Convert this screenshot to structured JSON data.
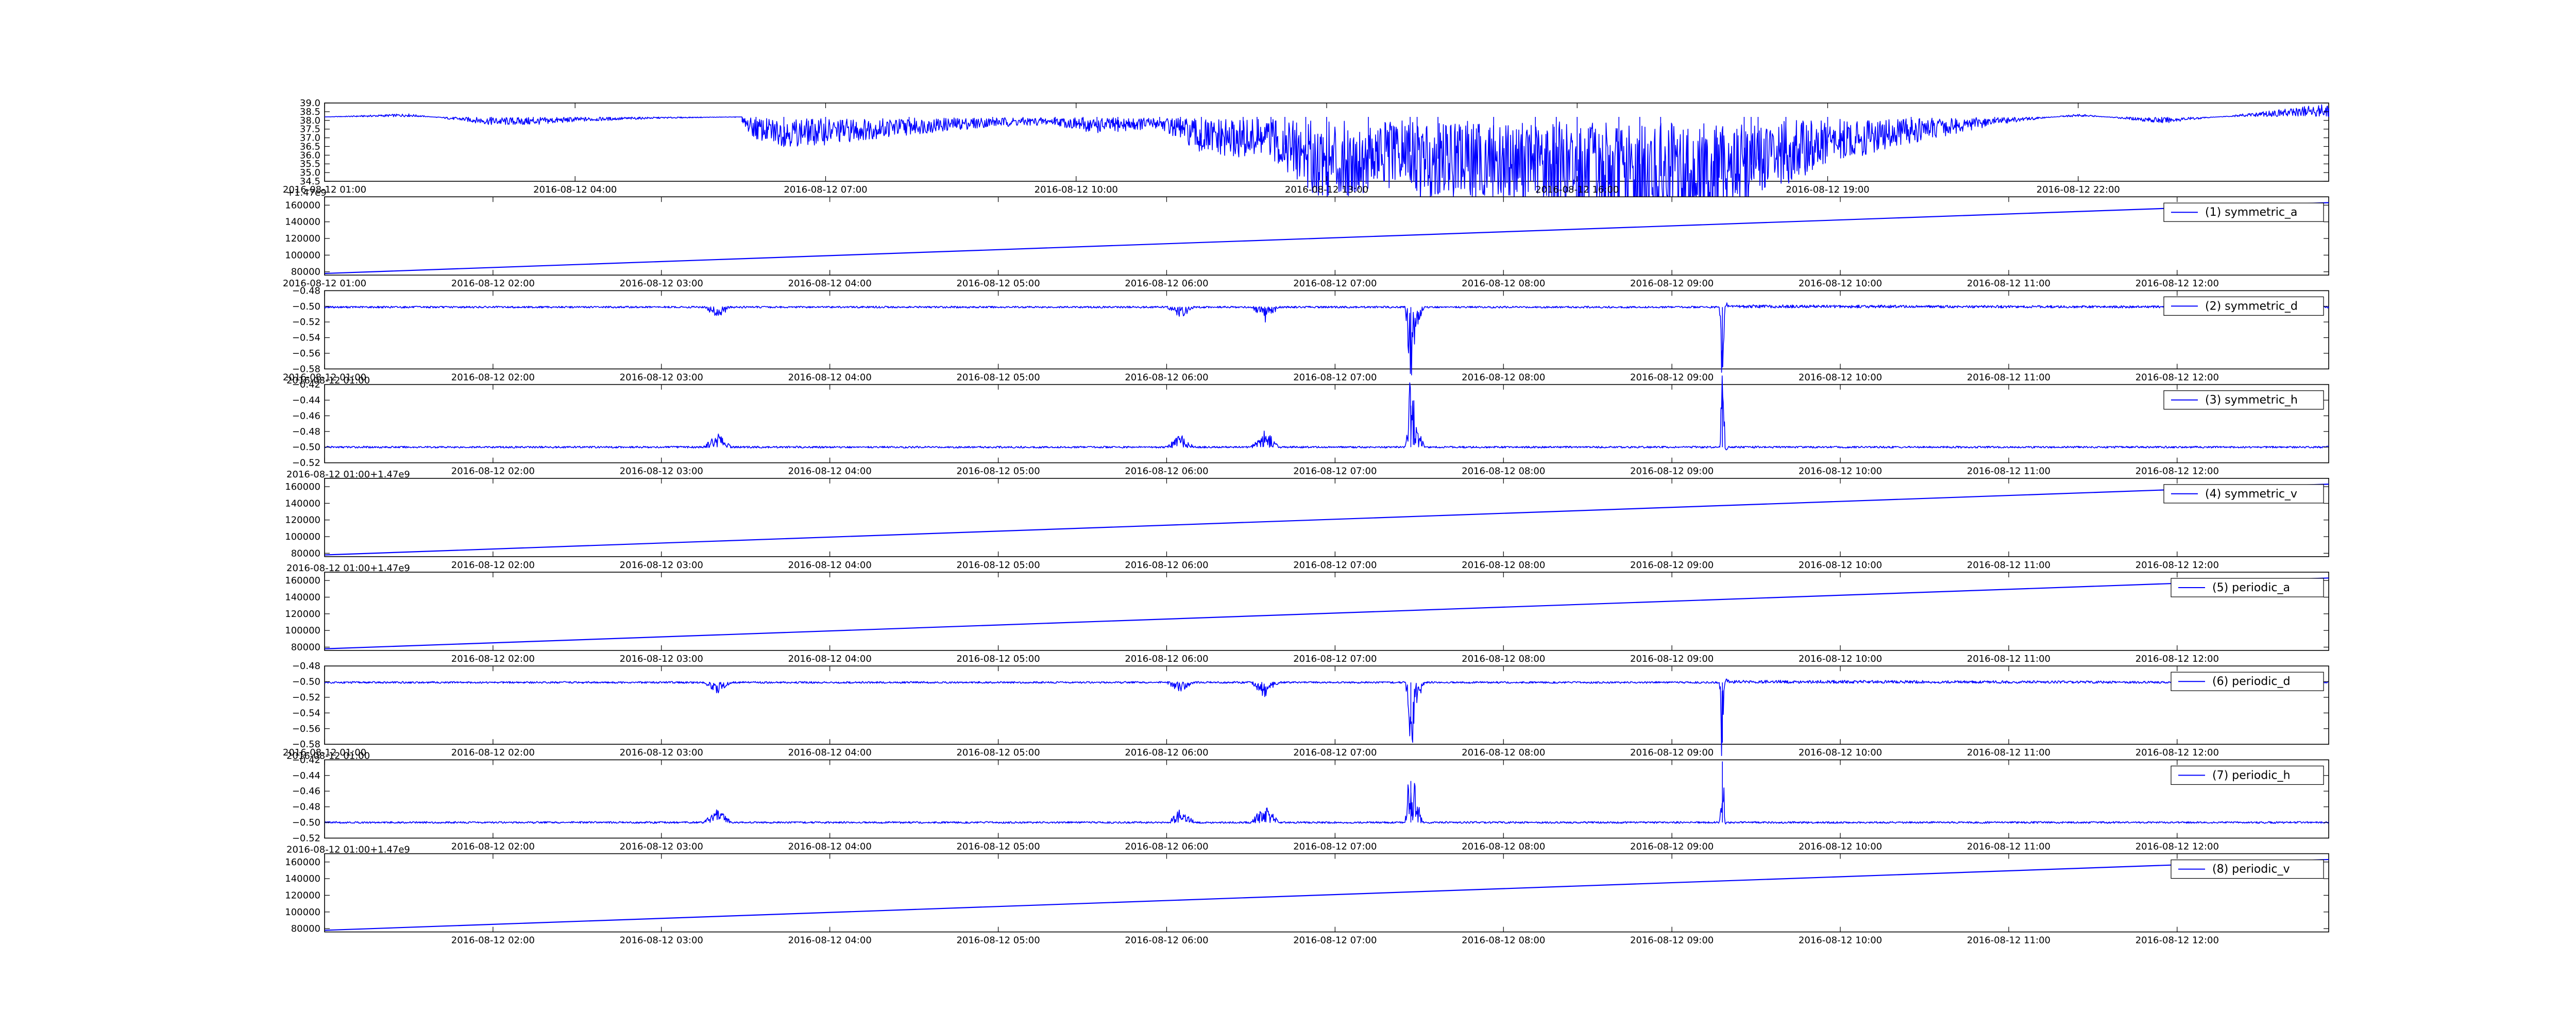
{
  "colors": {
    "line": "#0000ff",
    "axis": "#000000",
    "background": "#ffffff"
  },
  "chart_data": [
    {
      "type": "line",
      "grid": false,
      "legend": null,
      "x_ticks": [
        "2016-08-12 01:00",
        "2016-08-12 04:00",
        "2016-08-12 07:00",
        "2016-08-12 10:00",
        "2016-08-12 13:00",
        "2016-08-12 16:00",
        "2016-08-12 19:00",
        "2016-08-12 22:00"
      ],
      "xlim": [
        "2016-08-12 01:00",
        "2016-08-13 01:00"
      ],
      "y_ticks": [
        "34.5",
        "35.0",
        "35.5",
        "36.0",
        "36.5",
        "37.0",
        "37.5",
        "38.0",
        "38.5",
        "39.0"
      ],
      "ylim": [
        34.5,
        39.0
      ],
      "series": [
        {
          "x": [
            "2016-08-12 01:00",
            "2016-08-12 02:00",
            "2016-08-12 03:00",
            "2016-08-12 03:30",
            "2016-08-12 04:00",
            "2016-08-12 05:00",
            "2016-08-12 06:00",
            "2016-08-12 05:55",
            "2016-08-12 06:00",
            "2016-08-12 06:10",
            "2016-08-12 06:30",
            "2016-08-12 07:00",
            "2016-08-12 08:00",
            "2016-08-12 09:00",
            "2016-08-12 09:45",
            "2016-08-12 10:05",
            "2016-08-12 10:15",
            "2016-08-12 10:30",
            "2016-08-12 11:00",
            "2016-08-12 11:15",
            "2016-08-12 11:30",
            "2016-08-12 12:00",
            "2016-08-12 12:10",
            "2016-08-12 12:20",
            "2016-08-12 12:30",
            "2016-08-12 12:45",
            "2016-08-12 13:00",
            "2016-08-12 13:30",
            "2016-08-12 14:00",
            "2016-08-12 14:05",
            "2016-08-12 14:20",
            "2016-08-12 15:00",
            "2016-08-12 15:30",
            "2016-08-12 15:45",
            "2016-08-12 16:00",
            "2016-08-12 16:30",
            "2016-08-12 16:45",
            "2016-08-12 17:00",
            "2016-08-12 18:00",
            "2016-08-12 18:05",
            "2016-08-12 18:10",
            "2016-08-12 18:30",
            "2016-08-12 19:00",
            "2016-08-12 20:00",
            "2016-08-12 21:00",
            "2016-08-12 22:00",
            "2016-08-12 23:00",
            "2016-08-13 00:00",
            "2016-08-13 01:00"
          ],
          "y": [
            38.2,
            38.3,
            37.95,
            37.95,
            38.05,
            38.15,
            38.2,
            38.15,
            37.9,
            37.5,
            37.3,
            37.35,
            37.65,
            37.9,
            37.95,
            37.75,
            37.7,
            37.75,
            37.85,
            37.5,
            37.0,
            36.9,
            36.95,
            36.9,
            36.6,
            36.0,
            35.7,
            35.85,
            36.2,
            35.6,
            35.8,
            35.7,
            35.65,
            35.5,
            35.1,
            34.85,
            34.8,
            34.8,
            35.5,
            35.45,
            35.75,
            36.1,
            36.7,
            37.4,
            37.95,
            38.3,
            38.0,
            38.3,
            38.6
          ]
        }
      ]
    },
    {
      "type": "line",
      "grid": false,
      "legend": "upper-right",
      "offset_label": "+1.47e9",
      "x_ticks": [
        "2016-08-12 01:00",
        "2016-08-12 02:00",
        "2016-08-12 03:00",
        "2016-08-12 04:00",
        "2016-08-12 05:00",
        "2016-08-12 06:00",
        "2016-08-12 07:00",
        "2016-08-12 08:00",
        "2016-08-12 09:00",
        "2016-08-12 10:00",
        "2016-08-12 11:00",
        "2016-08-12 12:00"
      ],
      "xlim": [
        "2016-08-12 01:00",
        "2016-08-12 12:54"
      ],
      "y_ticks": [
        "80000",
        "100000",
        "120000",
        "140000",
        "160000"
      ],
      "ylim": [
        76000,
        170000
      ],
      "series": [
        {
          "name": "(1) symmetric_a",
          "x": [
            "2016-08-12 01:00",
            "2016-08-12 12:54"
          ],
          "y": [
            78000,
            163000
          ]
        }
      ]
    },
    {
      "type": "line",
      "grid": false,
      "legend": "upper-right",
      "x_ticks": [
        "2016-08-12 01:00",
        "2016-08-12 02:00",
        "2016-08-12 03:00",
        "2016-08-12 04:00",
        "2016-08-12 05:00",
        "2016-08-12 06:00",
        "2016-08-12 07:00",
        "2016-08-12 08:00",
        "2016-08-12 09:00",
        "2016-08-12 10:00",
        "2016-08-12 11:00",
        "2016-08-12 12:00"
      ],
      "xlim": [
        "2016-08-12 01:00",
        "2016-08-12 12:54"
      ],
      "y_ticks": [
        "−0.58",
        "−0.56",
        "−0.54",
        "−0.52",
        "−0.50",
        "−0.48"
      ],
      "ylim": [
        -0.58,
        -0.48
      ],
      "series": [
        {
          "name": "(2) symmetric_d",
          "x": [
            "2016-08-12 01:00",
            "2016-08-12 03:15",
            "2016-08-12 03:20",
            "2016-08-12 03:25",
            "2016-08-12 06:00",
            "2016-08-12 06:05",
            "2016-08-12 06:10",
            "2016-08-12 06:30",
            "2016-08-12 06:35",
            "2016-08-12 06:40",
            "2016-08-12 07:25",
            "2016-08-12 07:27",
            "2016-08-12 07:29",
            "2016-08-12 07:32",
            "2016-08-12 09:17",
            "2016-08-12 09:18",
            "2016-08-12 09:19",
            "2016-08-12 09:20",
            "2016-08-12 12:54"
          ],
          "y": [
            -0.501,
            -0.501,
            -0.508,
            -0.501,
            -0.501,
            -0.508,
            -0.501,
            -0.501,
            -0.511,
            -0.501,
            -0.501,
            -0.554,
            -0.515,
            -0.501,
            -0.501,
            -0.578,
            -0.497,
            -0.5,
            -0.501
          ]
        }
      ]
    },
    {
      "type": "line",
      "grid": false,
      "legend": "upper-right",
      "offset_label": "2016-08-12 01:00",
      "x_ticks": [
        "2016-08-12 01:00",
        "2016-08-12 02:00",
        "2016-08-12 03:00",
        "2016-08-12 04:00",
        "2016-08-12 05:00",
        "2016-08-12 06:00",
        "2016-08-12 07:00",
        "2016-08-12 08:00",
        "2016-08-12 09:00",
        "2016-08-12 10:00",
        "2016-08-12 11:00",
        "2016-08-12 12:00"
      ],
      "xlim": [
        "2016-08-12 01:00",
        "2016-08-12 12:54"
      ],
      "y_ticks": [
        "−0.52",
        "−0.50",
        "−0.48",
        "−0.46",
        "−0.44",
        "−0.42"
      ],
      "ylim": [
        -0.52,
        -0.42
      ],
      "series": [
        {
          "name": "(3) symmetric_h",
          "x": [
            "2016-08-12 01:00",
            "2016-08-12 03:15",
            "2016-08-12 03:20",
            "2016-08-12 03:25",
            "2016-08-12 06:00",
            "2016-08-12 06:05",
            "2016-08-12 06:10",
            "2016-08-12 06:30",
            "2016-08-12 06:35",
            "2016-08-12 06:40",
            "2016-08-12 07:25",
            "2016-08-12 07:27",
            "2016-08-12 07:29",
            "2016-08-12 07:32",
            "2016-08-12 09:17",
            "2016-08-12 09:18",
            "2016-08-12 09:19",
            "2016-08-12 09:20",
            "2016-08-12 12:54"
          ],
          "y": [
            -0.5,
            -0.5,
            -0.491,
            -0.5,
            -0.5,
            -0.491,
            -0.5,
            -0.5,
            -0.488,
            -0.5,
            -0.5,
            -0.447,
            -0.485,
            -0.5,
            -0.5,
            -0.422,
            -0.503,
            -0.5,
            -0.5
          ]
        }
      ]
    },
    {
      "type": "line",
      "grid": false,
      "legend": "upper-right",
      "offset_label": "2016-08-12 01:00+1.47e9",
      "x_ticks": [
        "2016-08-12 01:00",
        "2016-08-12 02:00",
        "2016-08-12 03:00",
        "2016-08-12 04:00",
        "2016-08-12 05:00",
        "2016-08-12 06:00",
        "2016-08-12 07:00",
        "2016-08-12 08:00",
        "2016-08-12 09:00",
        "2016-08-12 10:00",
        "2016-08-12 11:00",
        "2016-08-12 12:00"
      ],
      "xlim": [
        "2016-08-12 01:00",
        "2016-08-12 12:54"
      ],
      "y_ticks": [
        "80000",
        "100000",
        "120000",
        "140000",
        "160000"
      ],
      "ylim": [
        76000,
        170000
      ],
      "series": [
        {
          "name": "(4) symmetric_v",
          "x": [
            "2016-08-12 01:00",
            "2016-08-12 12:54"
          ],
          "y": [
            78000,
            163000
          ]
        }
      ]
    },
    {
      "type": "line",
      "grid": false,
      "legend": "upper-right",
      "offset_label": "2016-08-12 01:00+1.47e9",
      "x_ticks": [
        "2016-08-12 01:00",
        "2016-08-12 02:00",
        "2016-08-12 03:00",
        "2016-08-12 04:00",
        "2016-08-12 05:00",
        "2016-08-12 06:00",
        "2016-08-12 07:00",
        "2016-08-12 08:00",
        "2016-08-12 09:00",
        "2016-08-12 10:00",
        "2016-08-12 11:00",
        "2016-08-12 12:00"
      ],
      "xlim": [
        "2016-08-12 01:00",
        "2016-08-12 12:54"
      ],
      "y_ticks": [
        "80000",
        "100000",
        "120000",
        "140000",
        "160000"
      ],
      "ylim": [
        76000,
        170000
      ],
      "series": [
        {
          "name": "(5) periodic_a",
          "x": [
            "2016-08-12 01:00",
            "2016-08-12 12:54"
          ],
          "y": [
            78000,
            163000
          ]
        }
      ]
    },
    {
      "type": "line",
      "grid": false,
      "legend": "upper-right",
      "x_ticks": [
        "2016-08-12 01:00",
        "2016-08-12 02:00",
        "2016-08-12 03:00",
        "2016-08-12 04:00",
        "2016-08-12 05:00",
        "2016-08-12 06:00",
        "2016-08-12 07:00",
        "2016-08-12 08:00",
        "2016-08-12 09:00",
        "2016-08-12 10:00",
        "2016-08-12 11:00",
        "2016-08-12 12:00"
      ],
      "xlim": [
        "2016-08-12 01:00",
        "2016-08-12 12:54"
      ],
      "y_ticks": [
        "−0.58",
        "−0.56",
        "−0.54",
        "−0.52",
        "−0.50",
        "−0.48"
      ],
      "ylim": [
        -0.58,
        -0.48
      ],
      "series": [
        {
          "name": "(6) periodic_d",
          "x": [
            "2016-08-12 01:00",
            "2016-08-12 03:15",
            "2016-08-12 03:20",
            "2016-08-12 03:25",
            "2016-08-12 06:00",
            "2016-08-12 06:05",
            "2016-08-12 06:10",
            "2016-08-12 06:30",
            "2016-08-12 06:35",
            "2016-08-12 06:40",
            "2016-08-12 07:25",
            "2016-08-12 07:27",
            "2016-08-12 07:29",
            "2016-08-12 07:32",
            "2016-08-12 09:17",
            "2016-08-12 09:18",
            "2016-08-12 09:19",
            "2016-08-12 09:20",
            "2016-08-12 12:54"
          ],
          "y": [
            -0.501,
            -0.501,
            -0.508,
            -0.501,
            -0.501,
            -0.508,
            -0.501,
            -0.501,
            -0.511,
            -0.501,
            -0.501,
            -0.554,
            -0.515,
            -0.501,
            -0.501,
            -0.578,
            -0.497,
            -0.5,
            -0.501
          ]
        }
      ]
    },
    {
      "type": "line",
      "grid": false,
      "legend": "upper-right",
      "offset_label": "2016-08-12 01:00",
      "x_ticks": [
        "2016-08-12 01:00",
        "2016-08-12 02:00",
        "2016-08-12 03:00",
        "2016-08-12 04:00",
        "2016-08-12 05:00",
        "2016-08-12 06:00",
        "2016-08-12 07:00",
        "2016-08-12 08:00",
        "2016-08-12 09:00",
        "2016-08-12 10:00",
        "2016-08-12 11:00",
        "2016-08-12 12:00"
      ],
      "xlim": [
        "2016-08-12 01:00",
        "2016-08-12 12:54"
      ],
      "y_ticks": [
        "−0.52",
        "−0.50",
        "−0.48",
        "−0.46",
        "−0.44",
        "−0.42"
      ],
      "ylim": [
        -0.52,
        -0.42
      ],
      "series": [
        {
          "name": "(7) periodic_h",
          "x": [
            "2016-08-12 01:00",
            "2016-08-12 03:15",
            "2016-08-12 03:20",
            "2016-08-12 03:25",
            "2016-08-12 06:00",
            "2016-08-12 06:05",
            "2016-08-12 06:10",
            "2016-08-12 06:30",
            "2016-08-12 06:35",
            "2016-08-12 06:40",
            "2016-08-12 07:25",
            "2016-08-12 07:27",
            "2016-08-12 07:29",
            "2016-08-12 07:32",
            "2016-08-12 09:17",
            "2016-08-12 09:18",
            "2016-08-12 09:19",
            "2016-08-12 09:20",
            "2016-08-12 12:54"
          ],
          "y": [
            -0.5,
            -0.5,
            -0.491,
            -0.5,
            -0.5,
            -0.491,
            -0.5,
            -0.5,
            -0.488,
            -0.5,
            -0.5,
            -0.447,
            -0.485,
            -0.5,
            -0.5,
            -0.422,
            -0.503,
            -0.5,
            -0.5
          ]
        }
      ]
    },
    {
      "type": "line",
      "grid": false,
      "legend": "upper-right",
      "offset_label": "2016-08-12 01:00+1.47e9",
      "x_ticks": [
        "2016-08-12 01:00",
        "2016-08-12 02:00",
        "2016-08-12 03:00",
        "2016-08-12 04:00",
        "2016-08-12 05:00",
        "2016-08-12 06:00",
        "2016-08-12 07:00",
        "2016-08-12 08:00",
        "2016-08-12 09:00",
        "2016-08-12 10:00",
        "2016-08-12 11:00",
        "2016-08-12 12:00"
      ],
      "xlim": [
        "2016-08-12 01:00",
        "2016-08-12 12:54"
      ],
      "y_ticks": [
        "80000",
        "100000",
        "120000",
        "140000",
        "160000"
      ],
      "ylim": [
        76000,
        170000
      ],
      "series": [
        {
          "name": "(8) periodic_v",
          "x": [
            "2016-08-12 01:00",
            "2016-08-12 12:54"
          ],
          "y": [
            78000,
            163000
          ]
        }
      ]
    }
  ]
}
